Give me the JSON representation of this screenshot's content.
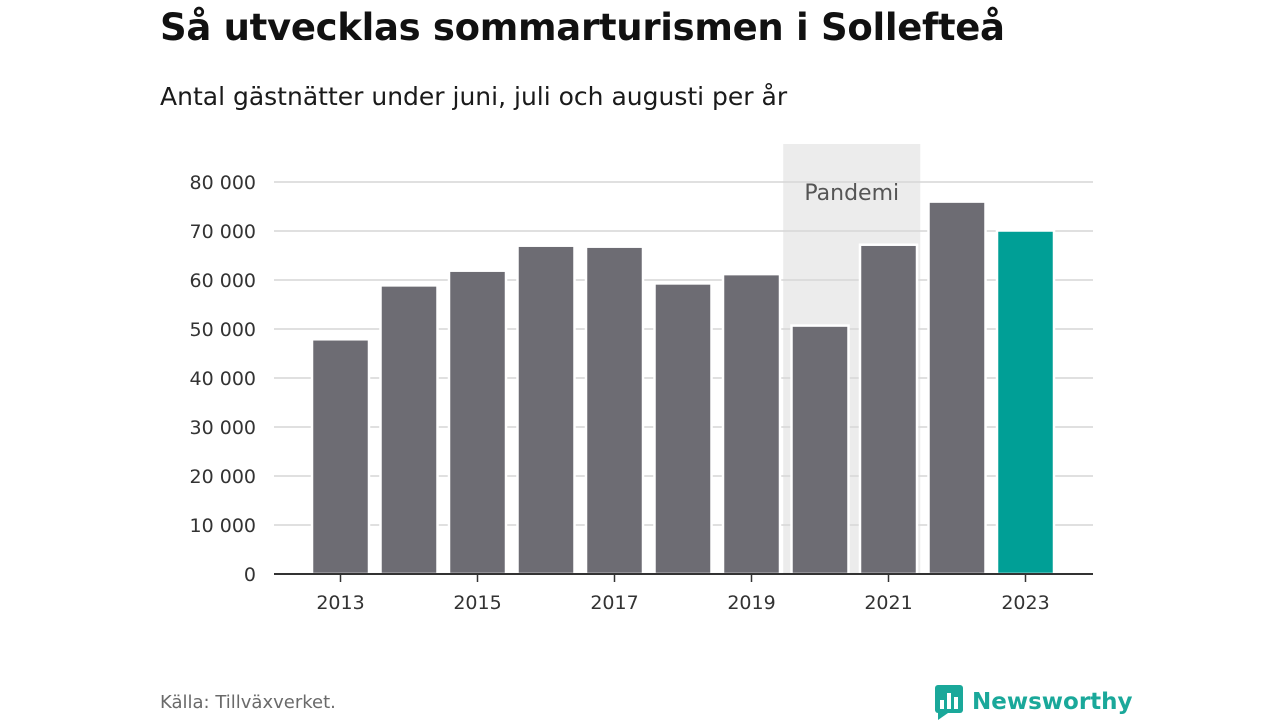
{
  "title": "Så utvecklas sommarturismen i Sollefteå",
  "subtitle": "Antal gästnätter under juni, juli och augusti per år",
  "source": "Källa: Tillväxverket.",
  "brand": "Newsworthy",
  "colors": {
    "bar": "#6d6c73",
    "highlight": "#009f96",
    "shade": "#ececec",
    "grid": "#d6d6d6",
    "axis": "#333333",
    "brand": "#1aa89a"
  },
  "chart_data": {
    "type": "bar",
    "categories": [
      "2013",
      "2014",
      "2015",
      "2016",
      "2017",
      "2018",
      "2019",
      "2020",
      "2021",
      "2022",
      "2023"
    ],
    "values": [
      47900,
      58900,
      61900,
      67000,
      66800,
      59300,
      61200,
      50700,
      67200,
      76000,
      70100
    ],
    "highlight_category": "2023",
    "x_tick_labels": [
      "2013",
      "2015",
      "2017",
      "2019",
      "2021",
      "2023"
    ],
    "y_ticks": [
      0,
      10000,
      20000,
      30000,
      40000,
      50000,
      60000,
      70000,
      80000
    ],
    "y_tick_labels": [
      "0",
      "10 000",
      "20 000",
      "30 000",
      "40 000",
      "50 000",
      "60 000",
      "70 000",
      "80 000"
    ],
    "ylim": [
      0,
      80000
    ],
    "grid": true,
    "annotation": {
      "label": "Pandemi",
      "categories": [
        "2020",
        "2021"
      ]
    }
  }
}
